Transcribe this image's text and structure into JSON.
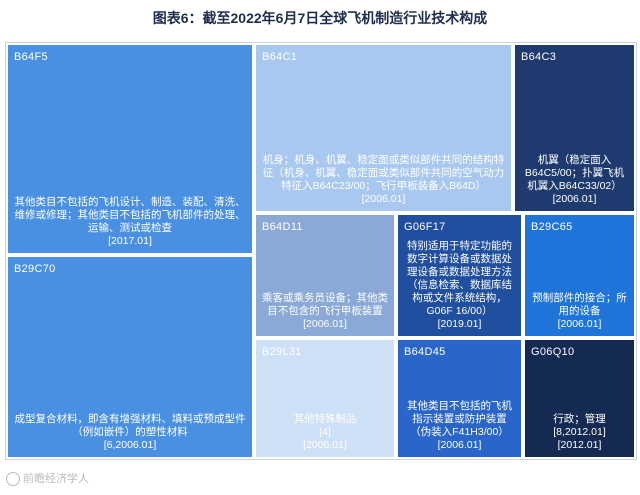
{
  "title": "图表6：截至2022年6月7日全球飞机制造行业技术构成",
  "watermark": "前瞻经济学人",
  "chart_data": {
    "type": "treemap",
    "title": "图表6：截至2022年6月7日全球飞机制造行业技术构成",
    "items": [
      {
        "code": "B64F5",
        "description": "其他类目不包括的飞机设计、制造、装配、清洗、维修或修理；其他类目不包括的飞机部件的处理、运输、测试或检查\n[2017.01]",
        "color": "#4a90e2",
        "text_color": "#ffffff"
      },
      {
        "code": "B29C70",
        "description": "成型复合材料，即含有增强材料、填料或预成型件（例如嵌件）的塑性材料\n[6,2006.01]",
        "color": "#4a90e2",
        "text_color": "#ffffff"
      },
      {
        "code": "B64C1",
        "description": "机身；机身、机翼、稳定面或类似部件共同的结构特征（机身、机翼、稳定面或类似部件共同的空气动力特征入B64C23/00；飞行甲板装备入B64D）\n[2006.01]",
        "color": "#a9c8ef",
        "text_color": "#ffffff"
      },
      {
        "code": "B64C3",
        "description": "机翼（稳定面入B64C5/00；扑翼飞机机翼入B64C33/02）\n[2006.01]",
        "color": "#1e3a6e",
        "text_color": "#ffffff"
      },
      {
        "code": "B64D11",
        "description": "乘客或乘务员设备；其他类目不包含的飞行甲板装置\n[2006.01]",
        "color": "#8aa9d6",
        "text_color": "#ffffff"
      },
      {
        "code": "G06F17",
        "description": "特别适用于特定功能的数字计算设备或数据处理设备或数据处理方法（信息检索、数据库结构或文件系统结构，G06F 16/00）\n[2019.01]",
        "color": "#1f4f9e",
        "text_color": "#ffffff"
      },
      {
        "code": "B29C65",
        "description": "预制部件的接合；所用的设备\n[2006.01]",
        "color": "#1f74d9",
        "text_color": "#ffffff"
      },
      {
        "code": "B29L31",
        "description": "其他特殊制品\n[4]\n[2006.01]",
        "color": "#cde0f6",
        "text_color": "#ffffff"
      },
      {
        "code": "B64D45",
        "description": "其他类目不包括的飞机指示装置或防护装置（伪装入F41H3/00）\n[2006.01]",
        "color": "#2a66c9",
        "text_color": "#ffffff"
      },
      {
        "code": "G06Q10",
        "description": "行政；管理\n[8,2012.01]\n[2012.01]",
        "color": "#142a52",
        "text_color": "#ffffff"
      }
    ]
  }
}
